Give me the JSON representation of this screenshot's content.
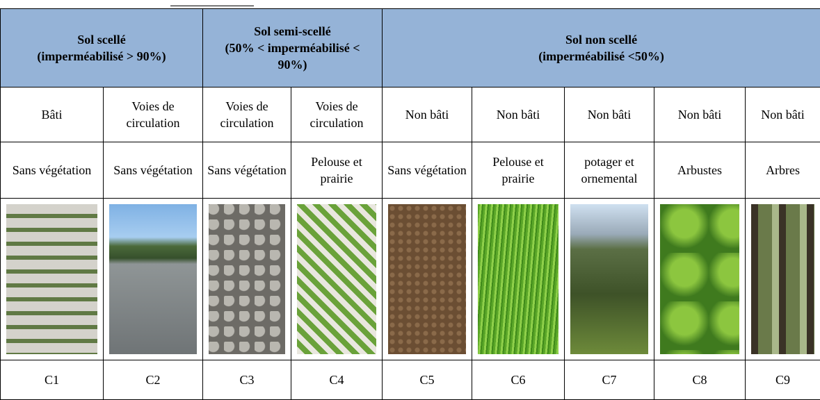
{
  "table": {
    "groups": [
      {
        "title": "Sol scellé",
        "subtitle": "(imperméabilisé > 90%)",
        "span": 2
      },
      {
        "title": "Sol semi-scellé",
        "subtitle": "(50% < imperméabilisé < 90%)",
        "span": 2
      },
      {
        "title": "Sol non scellé",
        "subtitle": "(imperméabilisé <50%)",
        "span": 5
      }
    ],
    "usage": [
      "Bâti",
      "Voies de circulation",
      "Voies de circulation",
      "Voies de circulation",
      "Non bâti",
      "Non bâti",
      "Non bâti",
      "Non bâti",
      "Non bâti"
    ],
    "vegetation": [
      "Sans végétation",
      "Sans végétation",
      "Sans végétation",
      "Pelouse et prairie",
      "Sans végétation",
      "Pelouse et prairie",
      "potager et ornemental",
      "Arbustes",
      "Arbres"
    ],
    "codes": [
      "C1",
      "C2",
      "C3",
      "C4",
      "C5",
      "C6",
      "C7",
      "C8",
      "C9"
    ]
  }
}
